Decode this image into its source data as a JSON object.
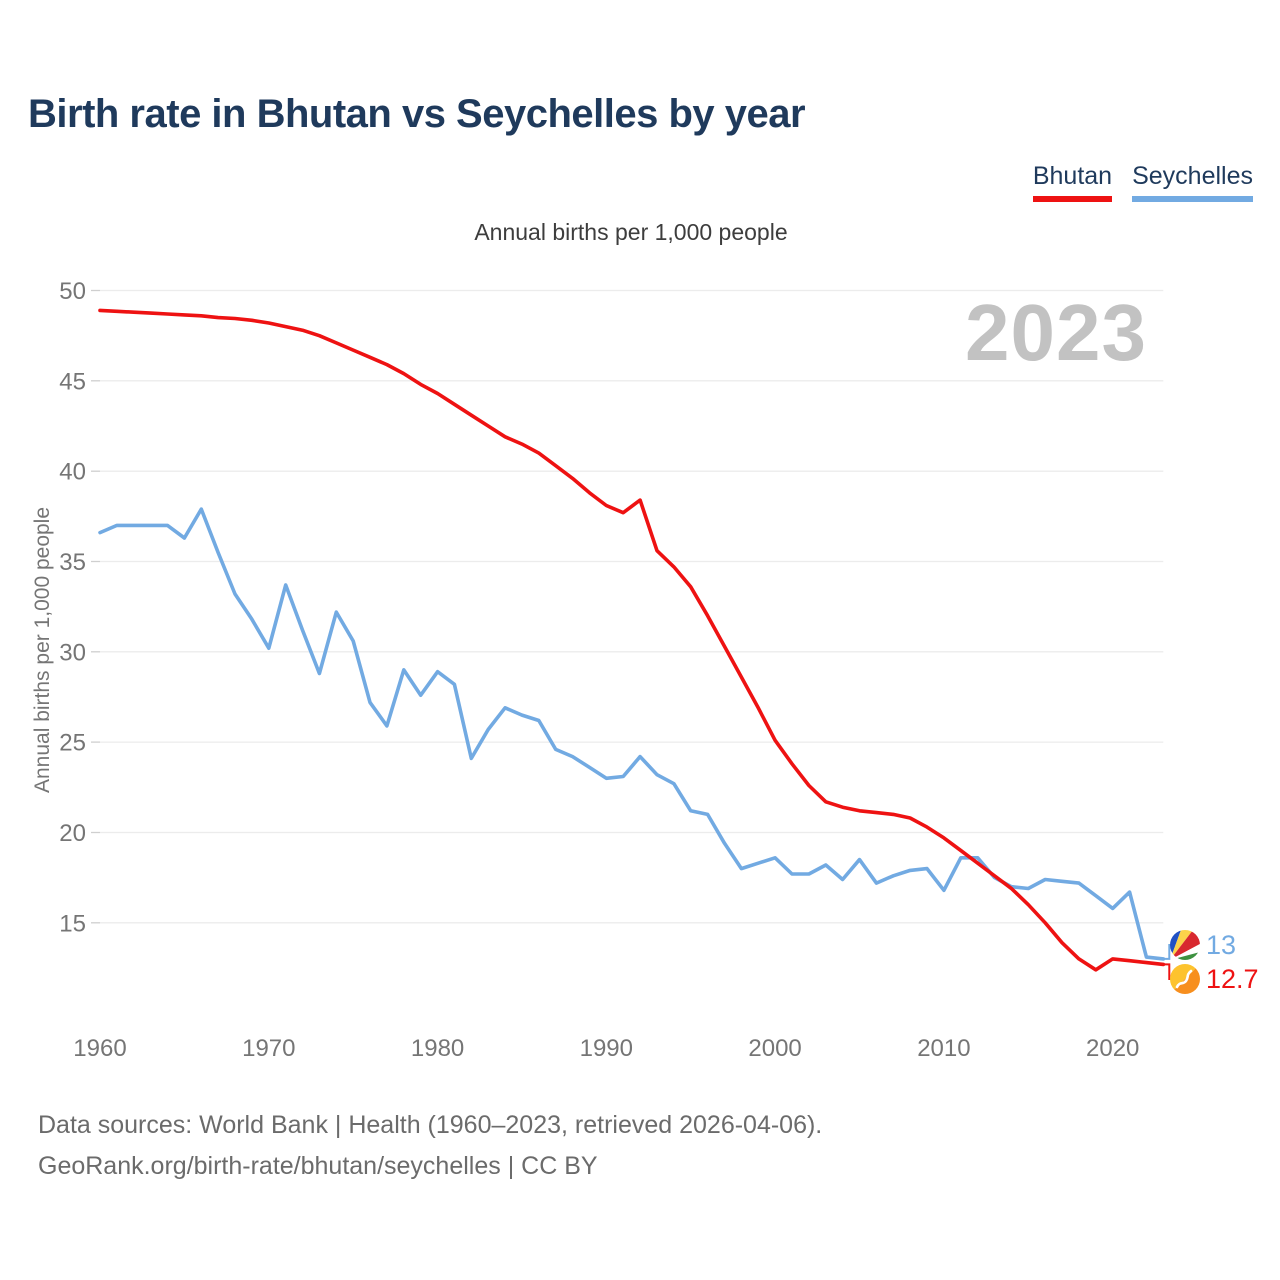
{
  "page": {
    "title": "Birth rate in Bhutan vs Seychelles by year",
    "subtitle": "Annual births per 1,000 people",
    "watermark": "2023",
    "footer_line1": "Data sources: World Bank | Health (1960–2023, retrieved 2026-04-06).",
    "footer_line2": "GeoRank.org/birth-rate/bhutan/seychelles | CC BY"
  },
  "legend": {
    "items": [
      {
        "label": "Bhutan",
        "color": "#ee1212"
      },
      {
        "label": "Seychelles",
        "color": "#72aae2"
      }
    ]
  },
  "chart_data": {
    "type": "line",
    "title": "Birth rate in Bhutan vs Seychelles by year",
    "ylabel": "Annual births per 1,000 people",
    "xlabel": "",
    "grid": "horizontal",
    "legend_position": "top-right",
    "x_ticks": [
      1960,
      1970,
      1980,
      1990,
      2000,
      2010,
      2020
    ],
    "y_ticks": [
      50,
      45,
      40,
      35,
      30,
      25,
      20,
      15
    ],
    "xlim": [
      1960,
      2023
    ],
    "ylim": [
      11,
      51
    ],
    "x": [
      1960,
      1961,
      1962,
      1963,
      1964,
      1965,
      1966,
      1967,
      1968,
      1969,
      1970,
      1971,
      1972,
      1973,
      1974,
      1975,
      1976,
      1977,
      1978,
      1979,
      1980,
      1981,
      1982,
      1983,
      1984,
      1985,
      1986,
      1987,
      1988,
      1989,
      1990,
      1991,
      1992,
      1993,
      1994,
      1995,
      1996,
      1997,
      1998,
      1999,
      2000,
      2001,
      2002,
      2003,
      2004,
      2005,
      2006,
      2007,
      2008,
      2009,
      2010,
      2011,
      2012,
      2013,
      2014,
      2015,
      2016,
      2017,
      2018,
      2019,
      2020,
      2021,
      2022,
      2023
    ],
    "series": [
      {
        "name": "Seychelles",
        "color": "#72aae2",
        "end_label": "13",
        "flag_icon": "seychelles-flag-icon",
        "values": [
          36.6,
          37.0,
          37.0,
          37.0,
          37.0,
          36.3,
          37.9,
          35.5,
          33.2,
          31.8,
          30.2,
          33.7,
          31.2,
          28.8,
          32.2,
          30.6,
          27.2,
          25.9,
          29.0,
          27.6,
          28.9,
          28.2,
          24.1,
          25.7,
          26.9,
          26.5,
          26.2,
          24.6,
          24.2,
          23.6,
          23.0,
          23.1,
          24.2,
          23.2,
          22.7,
          21.2,
          21.0,
          19.4,
          18.0,
          18.3,
          18.6,
          17.7,
          17.7,
          18.2,
          17.4,
          18.5,
          17.2,
          17.6,
          17.9,
          18.0,
          16.8,
          18.6,
          18.6,
          17.5,
          17.0,
          16.9,
          17.4,
          17.3,
          17.2,
          16.5,
          15.8,
          16.7,
          13.1,
          13.0
        ]
      },
      {
        "name": "Bhutan",
        "color": "#ee1212",
        "end_label": "12.7",
        "flag_icon": "bhutan-flag-icon",
        "values": [
          48.9,
          48.85,
          48.8,
          48.75,
          48.7,
          48.65,
          48.6,
          48.5,
          48.45,
          48.35,
          48.2,
          48.0,
          47.8,
          47.5,
          47.1,
          46.7,
          46.3,
          45.9,
          45.4,
          44.8,
          44.3,
          43.7,
          43.1,
          42.5,
          41.9,
          41.5,
          41.0,
          40.3,
          39.6,
          38.8,
          38.1,
          37.7,
          38.4,
          35.6,
          34.7,
          33.6,
          32.0,
          30.3,
          28.6,
          26.9,
          25.1,
          23.8,
          22.6,
          21.7,
          21.4,
          21.2,
          21.1,
          21.0,
          20.8,
          20.3,
          19.7,
          19.0,
          18.3,
          17.6,
          16.9,
          16.0,
          15.0,
          13.9,
          13.0,
          12.4,
          13.0,
          12.9,
          12.8,
          12.7
        ]
      }
    ]
  }
}
